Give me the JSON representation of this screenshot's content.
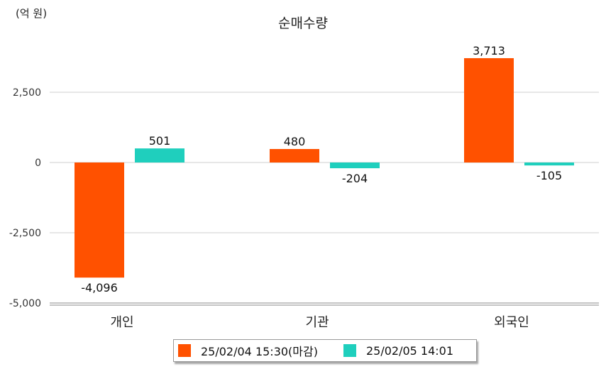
{
  "unit_label": "(억 원)",
  "chart_data": {
    "type": "bar",
    "title": "순매수량",
    "xlabel": "",
    "ylabel": "",
    "categories": [
      "개인",
      "기관",
      "외국인"
    ],
    "series": [
      {
        "name": "25/02/04 15:30(마감)",
        "values": [
          -4096,
          480,
          3713
        ],
        "labels": [
          "-4,096",
          "480",
          "3,713"
        ],
        "color": "#ff5100"
      },
      {
        "name": "25/02/05 14:01",
        "values": [
          501,
          -204,
          -105
        ],
        "labels": [
          "501",
          "-204",
          "-105"
        ],
        "color": "#1fcfbd"
      }
    ],
    "yticks": [
      2500,
      0,
      -2500,
      -5000
    ],
    "ytick_labels": [
      "2,500",
      "0",
      "-2,500",
      "-5,000"
    ],
    "ylim": [
      -5000,
      4600
    ],
    "grid": true,
    "legend": "bottom"
  }
}
